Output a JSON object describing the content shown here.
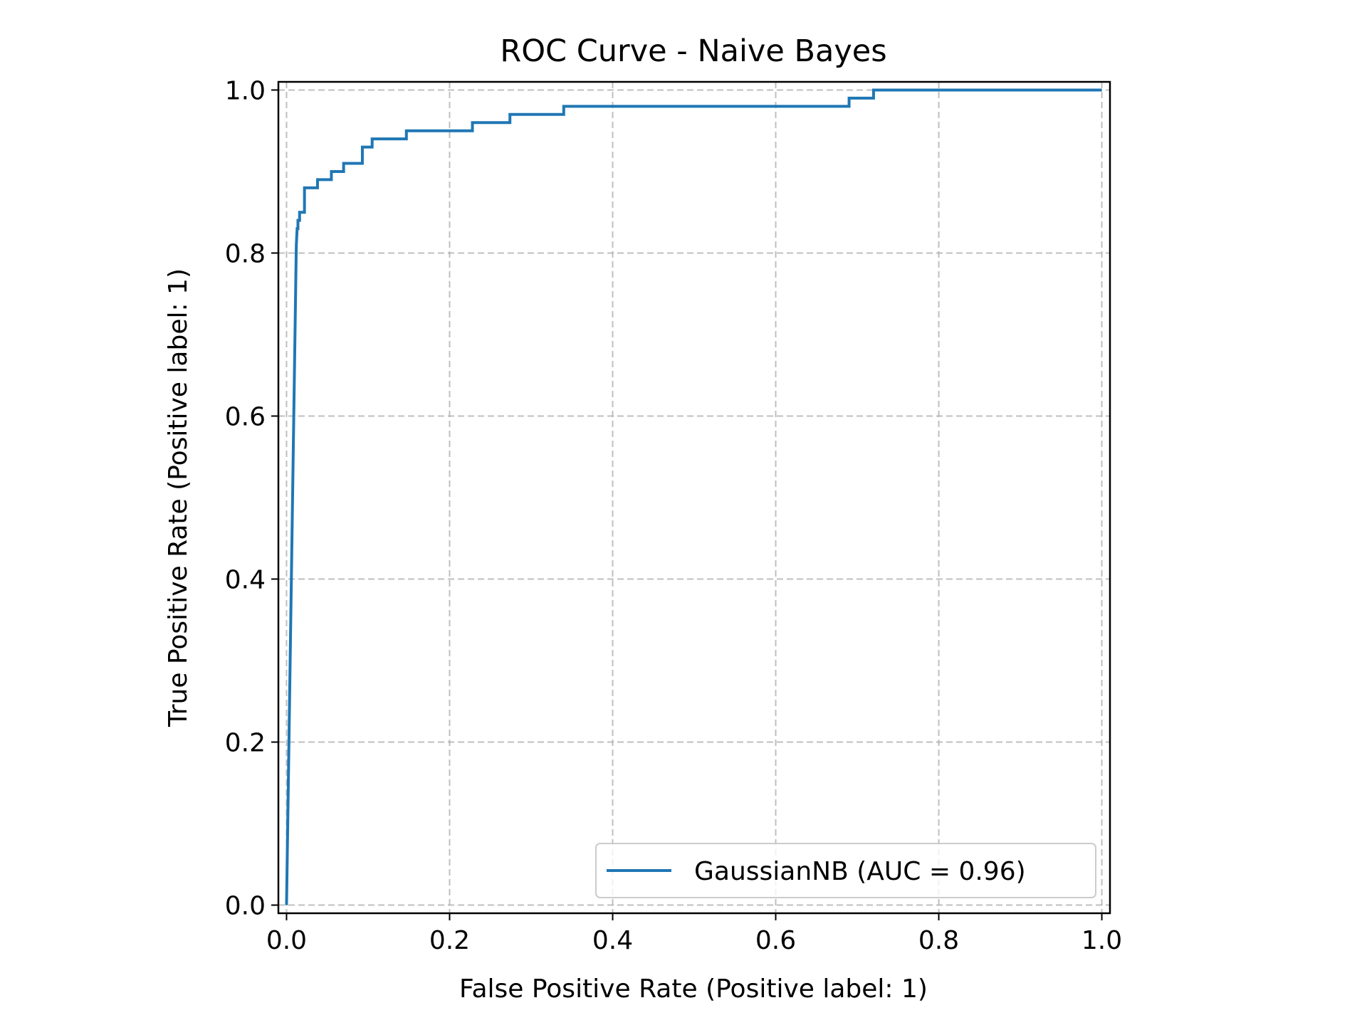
{
  "chart_data": {
    "type": "line",
    "title": "ROC Curve - Naive Bayes",
    "xlabel": "False Positive Rate (Positive label: 1)",
    "ylabel": "True Positive Rate (Positive label: 1)",
    "xlim": [
      -0.01,
      1.01
    ],
    "ylim": [
      -0.01,
      1.01
    ],
    "xticks": [
      0.0,
      0.2,
      0.4,
      0.6,
      0.8,
      1.0
    ],
    "xtick_labels": [
      "0.0",
      "0.2",
      "0.4",
      "0.6",
      "0.8",
      "1.0"
    ],
    "yticks": [
      0.0,
      0.2,
      0.4,
      0.6,
      0.8,
      1.0
    ],
    "ytick_labels": [
      "0.0",
      "0.2",
      "0.4",
      "0.6",
      "0.8",
      "1.0"
    ],
    "grid": true,
    "legend_position": "lower-right",
    "series": [
      {
        "name": "GaussianNB (AUC = 0.96)",
        "color": "#1f77b4",
        "x": [
          0.0,
          0.0,
          0.012,
          0.013,
          0.014,
          0.014,
          0.016,
          0.016,
          0.022,
          0.022,
          0.022,
          0.038,
          0.038,
          0.055,
          0.055,
          0.07,
          0.07,
          0.093,
          0.093,
          0.105,
          0.105,
          0.147,
          0.147,
          0.228,
          0.228,
          0.274,
          0.274,
          0.34,
          0.34,
          0.69,
          0.69,
          0.72,
          0.72,
          1.0
        ],
        "y": [
          0.0,
          0.0,
          0.81,
          0.83,
          0.83,
          0.84,
          0.84,
          0.85,
          0.85,
          0.87,
          0.88,
          0.88,
          0.89,
          0.89,
          0.9,
          0.9,
          0.91,
          0.91,
          0.93,
          0.93,
          0.94,
          0.94,
          0.95,
          0.95,
          0.96,
          0.96,
          0.97,
          0.97,
          0.98,
          0.98,
          0.99,
          0.99,
          1.0,
          1.0
        ]
      }
    ]
  }
}
